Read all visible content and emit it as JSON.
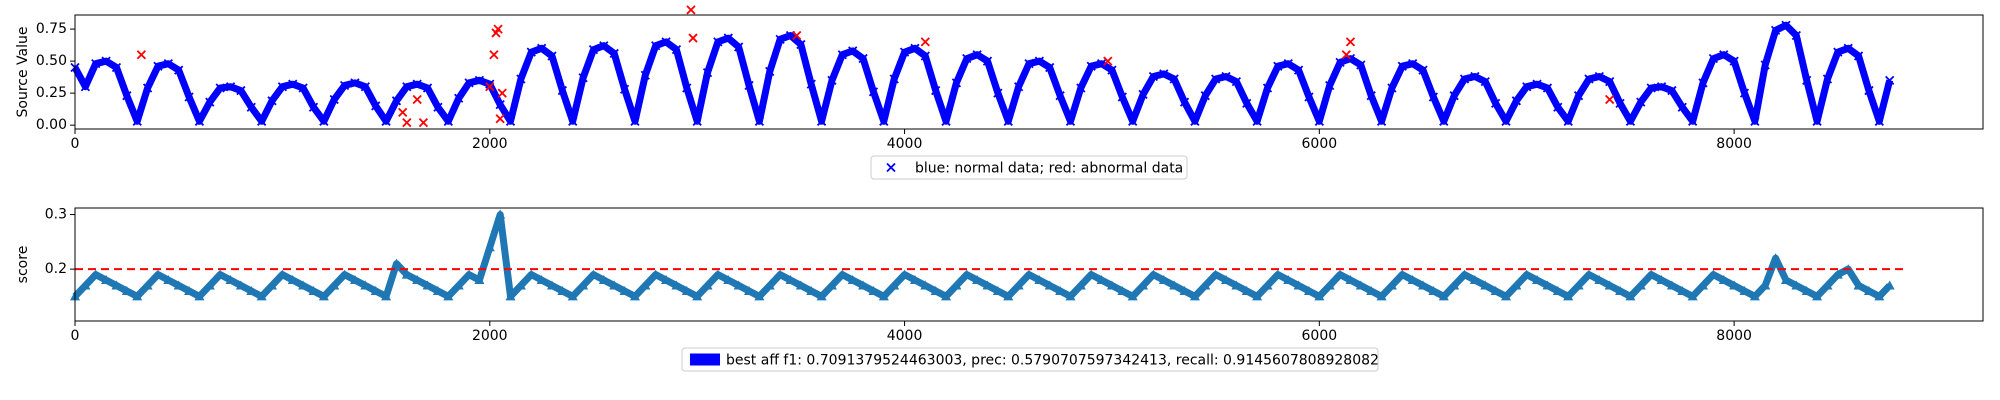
{
  "chart_data": [
    {
      "type": "scatter",
      "y_label": "Source Value",
      "legend": "blue: normal data; red: abnormal data",
      "xlim": [
        0,
        9200
      ],
      "ylim": [
        -0.03,
        0.86
      ],
      "xticks": [
        0,
        2000,
        4000,
        6000,
        8000
      ],
      "yticks": [
        {
          "value": 0,
          "label": "0.00"
        },
        {
          "value": 0.25,
          "label": "0.25"
        },
        {
          "value": 0.5,
          "label": "0.50"
        },
        {
          "value": 0.75,
          "label": "0.75"
        }
      ],
      "marker": "x",
      "series": [
        {
          "color": "#0000ff",
          "x": [
            0,
            50,
            100,
            150,
            200,
            250,
            300,
            350,
            400,
            450,
            500,
            550,
            600,
            650,
            700,
            750,
            800,
            850,
            900,
            950,
            1000,
            1050,
            1100,
            1150,
            1200,
            1250,
            1300,
            1350,
            1400,
            1450,
            1500,
            1550,
            1600,
            1650,
            1700,
            1750,
            1800,
            1850,
            1900,
            1950,
            2000,
            2050,
            2100,
            2150,
            2200,
            2250,
            2300,
            2350,
            2400,
            2450,
            2500,
            2550,
            2600,
            2650,
            2700,
            2750,
            2800,
            2850,
            2900,
            2950,
            3000,
            3050,
            3100,
            3150,
            3200,
            3250,
            3300,
            3350,
            3400,
            3450,
            3500,
            3550,
            3600,
            3650,
            3700,
            3750,
            3800,
            3850,
            3900,
            3950,
            4000,
            4050,
            4100,
            4150,
            4200,
            4250,
            4300,
            4350,
            4400,
            4450,
            4500,
            4550,
            4600,
            4650,
            4700,
            4750,
            4800,
            4850,
            4900,
            4950,
            5000,
            5050,
            5100,
            5150,
            5200,
            5250,
            5300,
            5350,
            5400,
            5450,
            5500,
            5550,
            5600,
            5650,
            5700,
            5750,
            5800,
            5850,
            5900,
            5950,
            6000,
            6050,
            6100,
            6150,
            6200,
            6250,
            6300,
            6350,
            6400,
            6450,
            6500,
            6550,
            6600,
            6650,
            6700,
            6750,
            6800,
            6850,
            6900,
            6950,
            7000,
            7050,
            7100,
            7150,
            7200,
            7250,
            7300,
            7350,
            7400,
            7450,
            7500,
            7550,
            7600,
            7650,
            7700,
            7750,
            7800,
            7850,
            7900,
            7950,
            8000,
            8050,
            8100,
            8150,
            8200,
            8250,
            8300,
            8350,
            8400,
            8450,
            8500,
            8550,
            8600,
            8650,
            8700,
            8750
          ],
          "values": [
            0.45,
            0.3,
            0.48,
            0.5,
            0.45,
            0.23,
            0.03,
            0.29,
            0.46,
            0.48,
            0.43,
            0.22,
            0.03,
            0.18,
            0.29,
            0.3,
            0.27,
            0.14,
            0.03,
            0.19,
            0.3,
            0.32,
            0.29,
            0.14,
            0.03,
            0.2,
            0.31,
            0.33,
            0.3,
            0.15,
            0.03,
            0.19,
            0.3,
            0.32,
            0.29,
            0.14,
            0.03,
            0.21,
            0.33,
            0.35,
            0.32,
            0.16,
            0.03,
            0.36,
            0.57,
            0.6,
            0.54,
            0.27,
            0.03,
            0.37,
            0.59,
            0.62,
            0.56,
            0.28,
            0.03,
            0.39,
            0.62,
            0.65,
            0.59,
            0.29,
            0.03,
            0.41,
            0.65,
            0.68,
            0.61,
            0.31,
            0.03,
            0.42,
            0.67,
            0.7,
            0.63,
            0.32,
            0.03,
            0.35,
            0.55,
            0.58,
            0.52,
            0.26,
            0.03,
            0.36,
            0.57,
            0.6,
            0.54,
            0.27,
            0.03,
            0.33,
            0.52,
            0.55,
            0.5,
            0.25,
            0.03,
            0.3,
            0.48,
            0.5,
            0.45,
            0.23,
            0.03,
            0.29,
            0.46,
            0.48,
            0.43,
            0.22,
            0.03,
            0.24,
            0.38,
            0.4,
            0.36,
            0.18,
            0.03,
            0.23,
            0.36,
            0.38,
            0.34,
            0.17,
            0.03,
            0.29,
            0.46,
            0.48,
            0.43,
            0.22,
            0.03,
            0.31,
            0.49,
            0.52,
            0.47,
            0.23,
            0.03,
            0.29,
            0.46,
            0.48,
            0.43,
            0.22,
            0.03,
            0.23,
            0.36,
            0.38,
            0.34,
            0.17,
            0.03,
            0.19,
            0.3,
            0.32,
            0.29,
            0.14,
            0.03,
            0.23,
            0.36,
            0.38,
            0.34,
            0.17,
            0.03,
            0.18,
            0.29,
            0.3,
            0.27,
            0.14,
            0.03,
            0.33,
            0.52,
            0.55,
            0.5,
            0.25,
            0.03,
            0.47,
            0.74,
            0.78,
            0.7,
            0.35,
            0.03,
            0.36,
            0.57,
            0.6,
            0.54,
            0.27,
            0.03,
            0.35
          ]
        },
        {
          "color": "#ff0000",
          "x": [
            320,
            1580,
            1600,
            1650,
            1680,
            2000,
            2020,
            2030,
            2040,
            2050,
            2060,
            2970,
            2980,
            3480,
            4100,
            4980,
            6130,
            6150,
            7400
          ],
          "values": [
            0.55,
            0.1,
            0.02,
            0.2,
            0.02,
            0.3,
            0.55,
            0.72,
            0.75,
            0.05,
            0.25,
            0.9,
            0.68,
            0.7,
            0.65,
            0.5,
            0.55,
            0.65,
            0.2
          ]
        }
      ]
    },
    {
      "type": "scatter",
      "y_label": "score",
      "legend": "best aff f1: 0.7091379524463003, prec: 0.5790707597342413, recall: 0.9145607808928082",
      "legend_color": "#0000ff",
      "xlim": [
        0,
        9200
      ],
      "ylim": [
        0.105,
        0.312
      ],
      "xticks": [
        0,
        2000,
        4000,
        6000,
        8000
      ],
      "yticks": [
        0.2,
        0.3
      ],
      "marker": "triangle",
      "threshold": 0.2,
      "threshold_color": "#ff0000",
      "series": [
        {
          "color": "#1f77b4",
          "x": [
            0,
            50,
            100,
            150,
            200,
            250,
            300,
            350,
            400,
            450,
            500,
            550,
            600,
            650,
            700,
            750,
            800,
            850,
            900,
            950,
            1000,
            1050,
            1100,
            1150,
            1200,
            1250,
            1300,
            1350,
            1400,
            1450,
            1500,
            1550,
            1600,
            1650,
            1700,
            1750,
            1800,
            1850,
            1900,
            1950,
            2000,
            2050,
            2100,
            2150,
            2200,
            2250,
            2300,
            2350,
            2400,
            2450,
            2500,
            2550,
            2600,
            2650,
            2700,
            2750,
            2800,
            2850,
            2900,
            2950,
            3000,
            3050,
            3100,
            3150,
            3200,
            3250,
            3300,
            3350,
            3400,
            3450,
            3500,
            3550,
            3600,
            3650,
            3700,
            3750,
            3800,
            3850,
            3900,
            3950,
            4000,
            4050,
            4100,
            4150,
            4200,
            4250,
            4300,
            4350,
            4400,
            4450,
            4500,
            4550,
            4600,
            4650,
            4700,
            4750,
            4800,
            4850,
            4900,
            4950,
            5000,
            5050,
            5100,
            5150,
            5200,
            5250,
            5300,
            5350,
            5400,
            5450,
            5500,
            5550,
            5600,
            5650,
            5700,
            5750,
            5800,
            5850,
            5900,
            5950,
            6000,
            6050,
            6100,
            6150,
            6200,
            6250,
            6300,
            6350,
            6400,
            6450,
            6500,
            6550,
            6600,
            6650,
            6700,
            6750,
            6800,
            6850,
            6900,
            6950,
            7000,
            7050,
            7100,
            7150,
            7200,
            7250,
            7300,
            7350,
            7400,
            7450,
            7500,
            7550,
            7600,
            7650,
            7700,
            7750,
            7800,
            7850,
            7900,
            7950,
            8000,
            8050,
            8100,
            8150,
            8200,
            8250,
            8300,
            8350,
            8400,
            8450,
            8500,
            8550,
            8600,
            8650,
            8700,
            8750
          ],
          "values": [
            0.15,
            0.17,
            0.19,
            0.18,
            0.17,
            0.16,
            0.15,
            0.17,
            0.19,
            0.18,
            0.17,
            0.16,
            0.15,
            0.17,
            0.19,
            0.18,
            0.17,
            0.16,
            0.15,
            0.17,
            0.19,
            0.18,
            0.17,
            0.16,
            0.15,
            0.17,
            0.19,
            0.18,
            0.17,
            0.16,
            0.15,
            0.21,
            0.19,
            0.18,
            0.17,
            0.16,
            0.15,
            0.17,
            0.19,
            0.18,
            0.24,
            0.3,
            0.15,
            0.17,
            0.19,
            0.18,
            0.17,
            0.16,
            0.15,
            0.17,
            0.19,
            0.18,
            0.17,
            0.16,
            0.15,
            0.17,
            0.19,
            0.18,
            0.17,
            0.16,
            0.15,
            0.17,
            0.19,
            0.18,
            0.17,
            0.16,
            0.15,
            0.17,
            0.19,
            0.18,
            0.17,
            0.16,
            0.15,
            0.17,
            0.19,
            0.18,
            0.17,
            0.16,
            0.15,
            0.17,
            0.19,
            0.18,
            0.17,
            0.16,
            0.15,
            0.17,
            0.19,
            0.18,
            0.17,
            0.16,
            0.15,
            0.17,
            0.19,
            0.18,
            0.17,
            0.16,
            0.15,
            0.17,
            0.19,
            0.18,
            0.17,
            0.16,
            0.15,
            0.17,
            0.19,
            0.18,
            0.17,
            0.16,
            0.15,
            0.17,
            0.19,
            0.18,
            0.17,
            0.16,
            0.15,
            0.17,
            0.19,
            0.18,
            0.17,
            0.16,
            0.15,
            0.17,
            0.19,
            0.18,
            0.17,
            0.16,
            0.15,
            0.17,
            0.19,
            0.18,
            0.17,
            0.16,
            0.15,
            0.17,
            0.19,
            0.18,
            0.17,
            0.16,
            0.15,
            0.17,
            0.19,
            0.18,
            0.17,
            0.16,
            0.15,
            0.17,
            0.19,
            0.18,
            0.17,
            0.16,
            0.15,
            0.17,
            0.19,
            0.18,
            0.17,
            0.16,
            0.15,
            0.17,
            0.19,
            0.18,
            0.17,
            0.16,
            0.15,
            0.17,
            0.22,
            0.18,
            0.17,
            0.16,
            0.15,
            0.17,
            0.19,
            0.2,
            0.17,
            0.16,
            0.15,
            0.17
          ]
        }
      ]
    }
  ]
}
